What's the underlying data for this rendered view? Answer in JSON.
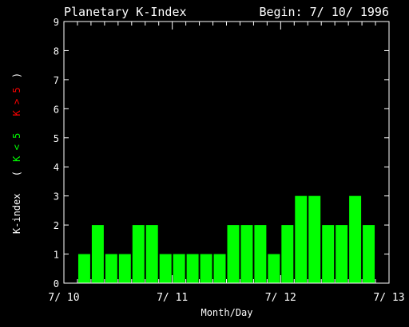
{
  "chart_data": {
    "type": "bar",
    "title": "Planetary K-Index",
    "subtitle": "Begin: 7/ 10/ 1996",
    "xlabel": "Month/Day",
    "ylabel": {
      "prefix": "K-index",
      "open": "(",
      "low": "K < 5",
      "high": "K > 5",
      "close": ")"
    },
    "ylim": [
      0,
      9
    ],
    "yticks": [
      "0",
      "1",
      "2",
      "3",
      "4",
      "5",
      "6",
      "7",
      "8",
      "9"
    ],
    "xlim": [
      0,
      3
    ],
    "xticks": [
      {
        "value": 0,
        "label": "7/ 10"
      },
      {
        "value": 1,
        "label": "7/ 11"
      },
      {
        "value": 2,
        "label": "7/ 12"
      },
      {
        "value": 3,
        "label": "7/ 13"
      }
    ],
    "interval_days": 0.125,
    "start_x": 0.0,
    "values": [
      0,
      1,
      2,
      1,
      1,
      2,
      2,
      1,
      1,
      1,
      1,
      1,
      2,
      2,
      2,
      1,
      2,
      3,
      3,
      2,
      2,
      3,
      2
    ],
    "colors": {
      "low": "#00ff00",
      "high": "#ff0000",
      "text": "#ffffff",
      "axes": "#ffffff",
      "background": "#000000"
    },
    "grid": false,
    "legend": "none"
  }
}
